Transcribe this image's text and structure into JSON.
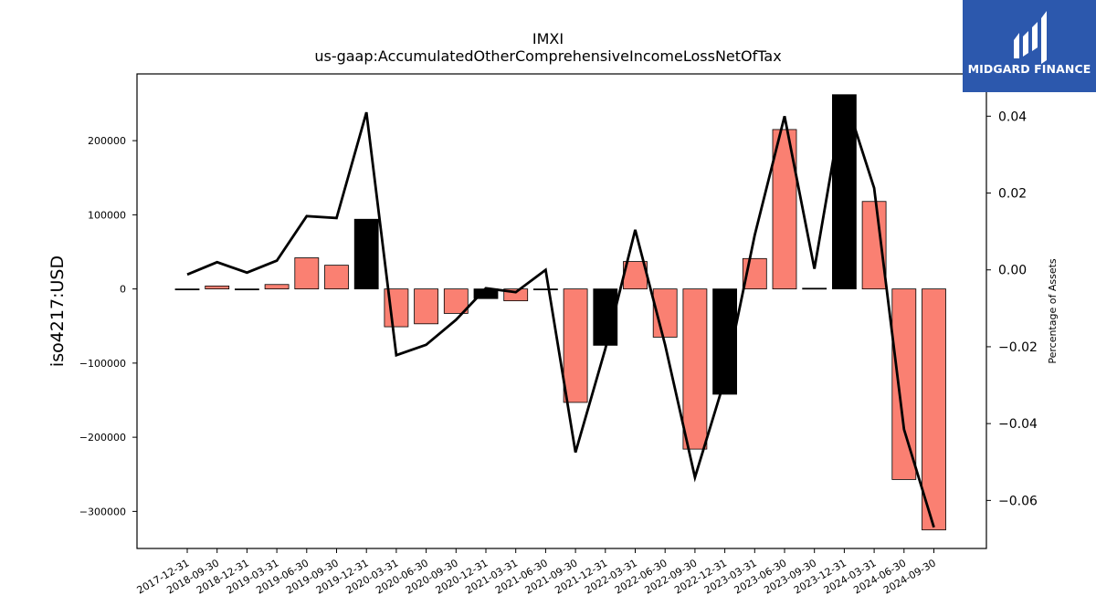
{
  "header": {
    "title": "IMXI",
    "subtitle": "us-gaap:AccumulatedOtherComprehensiveIncomeLossNetOfTax"
  },
  "logo": {
    "text": "MIDGARD FINANCE",
    "color": "#2c58ad"
  },
  "chart_data": {
    "type": "bar",
    "categories": [
      "2017-12-31",
      "2018-09-30",
      "2018-12-31",
      "2019-03-31",
      "2019-06-30",
      "2019-09-30",
      "2019-12-31",
      "2020-03-31",
      "2020-06-30",
      "2020-09-30",
      "2020-12-31",
      "2021-03-31",
      "2021-06-30",
      "2021-09-30",
      "2021-12-31",
      "2022-03-31",
      "2022-06-30",
      "2022-09-30",
      "2022-12-31",
      "2023-03-31",
      "2023-06-30",
      "2023-09-30",
      "2023-12-31",
      "2024-03-31",
      "2024-06-30",
      "2024-09-30"
    ],
    "series": [
      {
        "axis": "left",
        "values": [
          -1000,
          4000,
          -1000,
          6000,
          42000,
          32000,
          94000,
          -51000,
          -47000,
          -33000,
          -13000,
          -16000,
          0,
          -153000,
          -76000,
          37000,
          -65000,
          -216000,
          -142000,
          41000,
          215000,
          1000,
          262000,
          118000,
          -257000,
          -325000
        ],
        "colors": [
          "#000000",
          "#fa8072",
          "#000000",
          "#fa8072",
          "#fa8072",
          "#fa8072",
          "#000000",
          "#fa8072",
          "#fa8072",
          "#fa8072",
          "#000000",
          "#fa8072",
          "#000000",
          "#fa8072",
          "#000000",
          "#fa8072",
          "#fa8072",
          "#fa8072",
          "#000000",
          "#fa8072",
          "#fa8072",
          "#000000",
          "#000000",
          "#fa8072",
          "#fa8072",
          "#fa8072"
        ]
      },
      {
        "type": "line",
        "axis": "right",
        "color": "#000000",
        "values": [
          -0.0012,
          0.002,
          -0.0007,
          0.0024,
          0.014,
          0.0135,
          0.041,
          -0.0222,
          -0.0195,
          -0.013,
          -0.0048,
          -0.0058,
          0.0,
          -0.0475,
          -0.0205,
          0.0104,
          -0.0195,
          -0.054,
          -0.0285,
          0.009,
          0.04,
          0.0003,
          0.0455,
          0.0213,
          -0.0415,
          -0.067
        ]
      }
    ],
    "ylabel": "iso4217:USD",
    "y2label": "Percentage of Assets",
    "ylim": [
      -350000,
      290000
    ],
    "y2lim": [
      -0.0725,
      0.051
    ],
    "yticks": [
      -300000,
      -200000,
      -100000,
      0,
      100000,
      200000
    ],
    "y2ticks": [
      -0.06,
      -0.04,
      -0.02,
      0.0,
      0.02,
      0.04
    ],
    "ytick_labels": [
      "−300000",
      "−200000",
      "−100000",
      "0",
      "100000",
      "200000"
    ],
    "y2tick_labels": [
      "−0.06",
      "−0.04",
      "−0.02",
      "0.00",
      "0.02",
      "0.04"
    ],
    "grid": false
  }
}
